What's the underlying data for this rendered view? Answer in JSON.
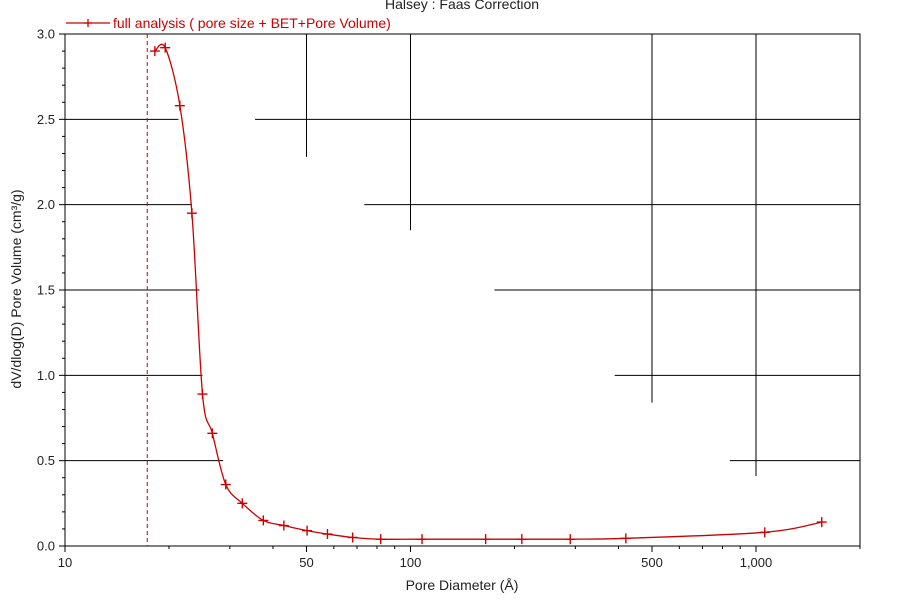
{
  "chart_data": {
    "type": "line",
    "title": "Halsey : Faas Correction",
    "xlabel": "Pore Diameter (Å)",
    "ylabel": "dV/dlog(D) Pore Volume (cm³/g)",
    "xscale": "log",
    "xlim": [
      10,
      2000
    ],
    "ylim": [
      0,
      3.0
    ],
    "x_ticks": [
      {
        "value": 10,
        "label": "10"
      },
      {
        "value": 50,
        "label": "50"
      },
      {
        "value": 100,
        "label": "100"
      },
      {
        "value": 500,
        "label": "500"
      },
      {
        "value": 1000,
        "label": "1,000"
      }
    ],
    "y_ticks": [
      {
        "value": 0.0,
        "label": "0.0"
      },
      {
        "value": 0.5,
        "label": "0.5"
      },
      {
        "value": 1.0,
        "label": "1.0"
      },
      {
        "value": 1.5,
        "label": "1.5"
      },
      {
        "value": 2.0,
        "label": "2.0"
      },
      {
        "value": 2.5,
        "label": "2.5"
      },
      {
        "value": 3.0,
        "label": "3.0"
      }
    ],
    "legend_position": "top-left",
    "reference_line": {
      "x": 17.3,
      "style": "dashed",
      "color": "#cc0000"
    },
    "series": [
      {
        "name": "full analysis  ( pore size + BET+Pore Volume)",
        "color": "#cc0000",
        "marker": "plus",
        "x": [
          18.2,
          19.5,
          21.5,
          23.3,
          25.0,
          26.7,
          29.2,
          32.6,
          37.5,
          43.0,
          50.2,
          57.5,
          68.0,
          82.0,
          108,
          165,
          210,
          290,
          420,
          1060,
          1550
        ],
        "y": [
          2.9,
          2.92,
          2.58,
          1.95,
          0.89,
          0.66,
          0.36,
          0.25,
          0.15,
          0.12,
          0.09,
          0.07,
          0.05,
          0.04,
          0.04,
          0.04,
          0.04,
          0.04,
          0.045,
          0.08,
          0.14
        ]
      }
    ],
    "background_lines": [
      {
        "orientation": "v",
        "x": 50,
        "y_from": 2.28,
        "y_to": 3.0
      },
      {
        "orientation": "v",
        "x": 100,
        "y_from": 1.85,
        "y_to": 3.0
      },
      {
        "orientation": "v",
        "x": 500,
        "y_from": 0.84,
        "y_to": 3.0
      },
      {
        "orientation": "v",
        "x": 1000,
        "y_from": 0.41,
        "y_to": 3.0
      },
      {
        "orientation": "h",
        "y": 2.5,
        "x_from": 10,
        "x_to": 21.3
      },
      {
        "orientation": "h",
        "y": 2.5,
        "x_from": 35.5,
        "x_to": 2000
      },
      {
        "orientation": "h",
        "y": 2.0,
        "x_from": 10,
        "x_to": 23.3
      },
      {
        "orientation": "h",
        "y": 2.0,
        "x_from": 73.5,
        "x_to": 2000
      },
      {
        "orientation": "h",
        "y": 1.5,
        "x_from": 10,
        "x_to": 24.5
      },
      {
        "orientation": "h",
        "y": 1.5,
        "x_from": 175,
        "x_to": 2000
      },
      {
        "orientation": "h",
        "y": 1.0,
        "x_from": 10,
        "x_to": 25.0
      },
      {
        "orientation": "h",
        "y": 1.0,
        "x_from": 390,
        "x_to": 2000
      },
      {
        "orientation": "h",
        "y": 0.5,
        "x_from": 10,
        "x_to": 28.7
      },
      {
        "orientation": "h",
        "y": 0.5,
        "x_from": 840,
        "x_to": 2000
      }
    ]
  }
}
